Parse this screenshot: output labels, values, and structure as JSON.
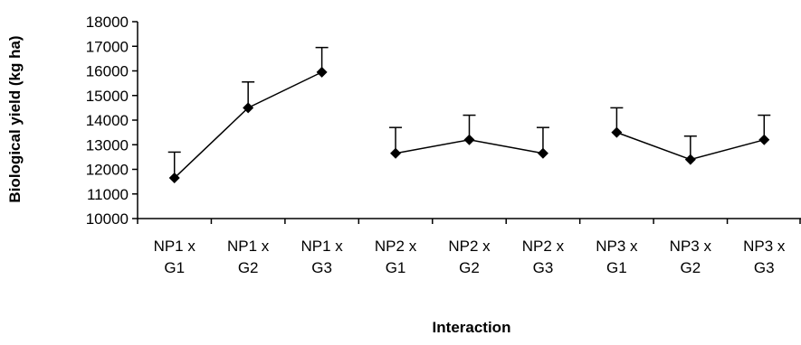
{
  "chart_data": {
    "type": "line",
    "title": "",
    "xlabel": "Interaction",
    "ylabel": "Biological yield (kg ha)",
    "ylim": [
      10000,
      18000
    ],
    "yticks": [
      10000,
      11000,
      12000,
      13000,
      14000,
      15000,
      16000,
      17000,
      18000
    ],
    "grid": false,
    "legend": "none",
    "categories": [
      [
        "NP1 x",
        "G1"
      ],
      [
        "NP1 x",
        "G2"
      ],
      [
        "NP1 x",
        "G3"
      ],
      [
        "NP2 x",
        "G1"
      ],
      [
        "NP2 x",
        "G2"
      ],
      [
        "NP2 x",
        "G3"
      ],
      [
        "NP3 x",
        "G1"
      ],
      [
        "NP3 x",
        "G2"
      ],
      [
        "NP3 x",
        "G3"
      ]
    ],
    "groups": [
      [
        0,
        1,
        2
      ],
      [
        3,
        4,
        5
      ],
      [
        6,
        7,
        8
      ]
    ],
    "series": [
      {
        "values": [
          11650,
          14500,
          15950,
          12650,
          13200,
          12650,
          13500,
          12400,
          13200
        ],
        "error_plus": [
          1050,
          1050,
          1000,
          1050,
          1000,
          1050,
          1000,
          950,
          1000
        ]
      }
    ],
    "colors": {
      "line": "#000000",
      "marker": "#000000",
      "axis": "#000000"
    }
  }
}
